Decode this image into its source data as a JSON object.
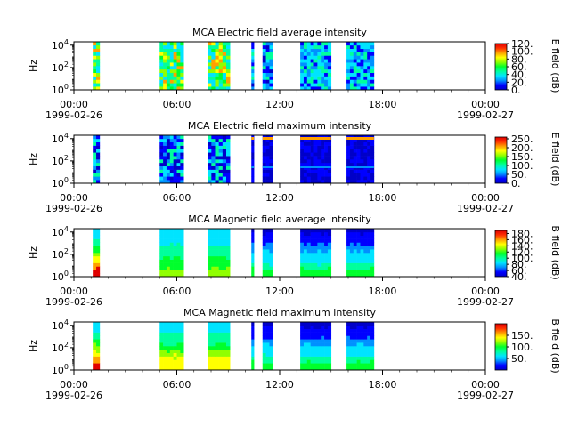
{
  "figure": {
    "background": "#ffffff"
  },
  "time_ticks": {
    "labels": [
      "00:00",
      "06:00",
      "12:00",
      "18:00",
      "00:00"
    ],
    "hours": [
      0,
      6,
      12,
      18,
      24
    ],
    "start_date": "1999-02-26",
    "end_date": "1999-02-27"
  },
  "colormap": [
    "#ffffff",
    "#0000c8",
    "#0000ff",
    "#0090ff",
    "#00e4ff",
    "#00ff9c",
    "#00ff2c",
    "#90ff00",
    "#ffff00",
    "#ffa000",
    "#ff3000",
    "#e00000"
  ],
  "chart_data": [
    {
      "type": "heatmap",
      "title": "MCA  Electric field average intensity",
      "ylabel": "Hz",
      "yscale": "log",
      "ylim": [
        1,
        20000
      ],
      "ytick_labels": [
        "10^0",
        "10^2",
        "10^4"
      ],
      "xlim_hours": [
        0,
        24
      ],
      "colorbar": {
        "label": "E field (dB)",
        "range": [
          0,
          120
        ],
        "ticks": [
          0,
          20,
          40,
          60,
          80,
          100,
          120
        ],
        "tick_labels": [
          "0.",
          "20.",
          "40.",
          "60.",
          "80.",
          "100.",
          "120."
        ]
      },
      "segments": [
        {
          "start": 1.1,
          "end": 1.5,
          "pattern": "dense"
        },
        {
          "start": 5.0,
          "end": 6.4,
          "pattern": "dense"
        },
        {
          "start": 7.8,
          "end": 9.1,
          "pattern": "dense"
        },
        {
          "start": 10.35,
          "end": 10.5,
          "pattern": "cold"
        },
        {
          "start": 11.0,
          "end": 11.6,
          "pattern": "cold"
        },
        {
          "start": 13.2,
          "end": 15.0,
          "pattern": "medium"
        },
        {
          "start": 15.9,
          "end": 17.5,
          "pattern": "medium"
        }
      ]
    },
    {
      "type": "heatmap",
      "title": "MCA  Electric field maximum intensity",
      "ylabel": "Hz",
      "yscale": "log",
      "ylim": [
        1,
        20000
      ],
      "ytick_labels": [
        "10^0",
        "10^2",
        "10^4"
      ],
      "xlim_hours": [
        0,
        24
      ],
      "colorbar": {
        "label": "E field (dB)",
        "range": [
          0,
          260
        ],
        "ticks": [
          0,
          50,
          100,
          150,
          200,
          250
        ],
        "tick_labels": [
          "0.",
          "50.",
          "100.",
          "150.",
          "200.",
          "250."
        ]
      },
      "segments": [
        {
          "start": 1.1,
          "end": 1.5,
          "pattern": "cold"
        },
        {
          "start": 5.0,
          "end": 6.4,
          "pattern": "cold"
        },
        {
          "start": 7.8,
          "end": 9.1,
          "pattern": "cold"
        },
        {
          "start": 10.35,
          "end": 10.5,
          "pattern": "deep"
        },
        {
          "start": 11.0,
          "end": 11.6,
          "pattern": "deep"
        },
        {
          "start": 13.2,
          "end": 15.0,
          "pattern": "deep"
        },
        {
          "start": 15.9,
          "end": 17.5,
          "pattern": "deep"
        }
      ]
    },
    {
      "type": "heatmap",
      "title": "MCA  Magnetic field average intensity",
      "ylabel": "Hz",
      "yscale": "log",
      "ylim": [
        1,
        20000
      ],
      "ytick_labels": [
        "10^0",
        "10^2",
        "10^4"
      ],
      "xlim_hours": [
        0,
        24
      ],
      "colorbar": {
        "label": "B field (dB)",
        "range": [
          40,
          190
        ],
        "ticks": [
          40,
          60,
          80,
          100,
          120,
          140,
          160,
          180
        ],
        "tick_labels": [
          "40.",
          "60.",
          "80.",
          "100.",
          "120.",
          "140.",
          "160.",
          "180."
        ]
      },
      "segments": [
        {
          "start": 1.1,
          "end": 1.5,
          "pattern": "gradient-hot"
        },
        {
          "start": 5.0,
          "end": 6.4,
          "pattern": "gradient"
        },
        {
          "start": 7.8,
          "end": 9.1,
          "pattern": "gradient"
        },
        {
          "start": 10.35,
          "end": 10.5,
          "pattern": "gradient-cold"
        },
        {
          "start": 11.0,
          "end": 11.6,
          "pattern": "gradient-cold"
        },
        {
          "start": 13.2,
          "end": 15.0,
          "pattern": "gradient-cold"
        },
        {
          "start": 15.9,
          "end": 17.5,
          "pattern": "gradient-cold"
        }
      ]
    },
    {
      "type": "heatmap",
      "title": "MCA  Magnetic field maximum intensity",
      "ylabel": "Hz",
      "yscale": "log",
      "ylim": [
        1,
        20000
      ],
      "ytick_labels": [
        "10^0",
        "10^2",
        "10^4"
      ],
      "xlim_hours": [
        0,
        24
      ],
      "colorbar": {
        "label": "B field (dB)",
        "range": [
          0,
          200
        ],
        "ticks": [
          50,
          100,
          150
        ],
        "tick_labels": [
          "50.",
          "100.",
          "150."
        ]
      },
      "segments": [
        {
          "start": 1.1,
          "end": 1.5,
          "pattern": "gradient-hot"
        },
        {
          "start": 5.0,
          "end": 6.4,
          "pattern": "gradient-warm"
        },
        {
          "start": 7.8,
          "end": 9.1,
          "pattern": "gradient-warm"
        },
        {
          "start": 10.35,
          "end": 10.5,
          "pattern": "gradient-cold"
        },
        {
          "start": 11.0,
          "end": 11.6,
          "pattern": "gradient-cold"
        },
        {
          "start": 13.2,
          "end": 15.0,
          "pattern": "gradient-cold"
        },
        {
          "start": 15.9,
          "end": 17.5,
          "pattern": "gradient-cold"
        }
      ]
    }
  ]
}
